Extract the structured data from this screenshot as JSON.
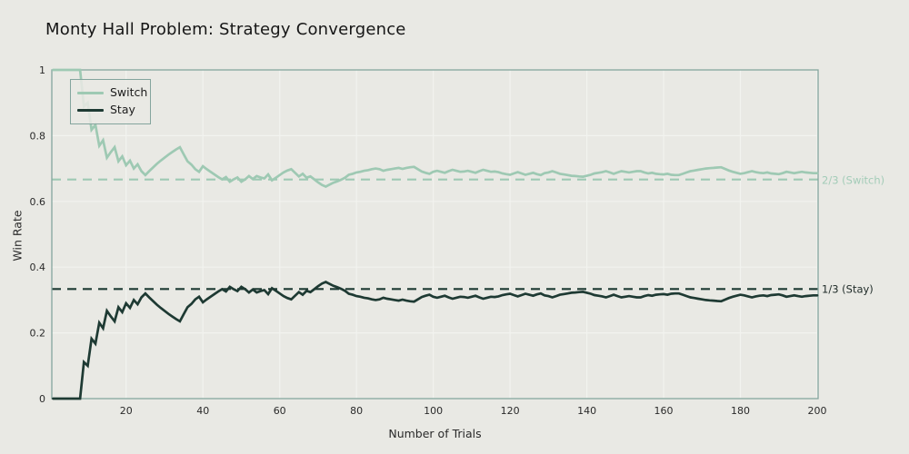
{
  "title": "Monty Hall Problem: Strategy Convergence",
  "axes": {
    "xlabel": "Number of Trials",
    "ylabel": "Win Rate",
    "x_tick_values": [
      20,
      40,
      60,
      80,
      100,
      120,
      140,
      160,
      180,
      200
    ],
    "x_tick_labels": [
      "20",
      "40",
      "60",
      "80",
      "100",
      "120",
      "140",
      "160",
      "180",
      "200"
    ],
    "y_tick_values": [
      0,
      0.2,
      0.4,
      0.6,
      0.8,
      1
    ],
    "y_tick_labels": [
      "0",
      "0.2",
      "0.4",
      "0.6",
      "0.8",
      "1"
    ]
  },
  "legend": {
    "items": [
      {
        "label": "Switch",
        "series": "switch"
      },
      {
        "label": "Stay",
        "series": "stay"
      }
    ]
  },
  "annotations": {
    "switch_label": "2/3 (Switch)",
    "stay_label": "1/3 (Stay)"
  },
  "colors": {
    "background": "#e9e9e4",
    "switch_line": "#9ec9b3",
    "stay_line": "#1e3a33",
    "spine": "#84a59d",
    "grid": "#f2f3ef",
    "text": "#2a2a2a",
    "title_text": "#161616",
    "annotation_switch": "#a3ccb8",
    "annotation_stay": "#1f2b28"
  },
  "chart_data": {
    "type": "line",
    "title": "Monty Hall Problem: Strategy Convergence",
    "xlabel": "Number of Trials",
    "ylabel": "Win Rate",
    "xlim": [
      1,
      200
    ],
    "ylim": [
      0,
      1
    ],
    "grid": true,
    "legend_position": "top-left",
    "x_start": 1,
    "x_step": 1,
    "reference_lines": [
      {
        "y": 0.6667,
        "label": "2/3 (Switch)",
        "style": "dashed",
        "color_key": "switch_line"
      },
      {
        "y": 0.3333,
        "label": "1/3 (Stay)",
        "style": "dashed",
        "color_key": "stay_line"
      }
    ],
    "series": [
      {
        "name": "Switch",
        "color_key": "switch_line",
        "values": [
          1,
          1,
          1,
          1,
          1,
          1,
          1,
          1,
          0.889,
          0.9,
          0.818,
          0.833,
          0.769,
          0.786,
          0.733,
          0.75,
          0.765,
          0.722,
          0.737,
          0.71,
          0.724,
          0.7,
          0.713,
          0.692,
          0.68,
          0.692,
          0.703,
          0.714,
          0.724,
          0.733,
          0.742,
          0.75,
          0.758,
          0.765,
          0.743,
          0.722,
          0.712,
          0.698,
          0.69,
          0.707,
          0.698,
          0.69,
          0.682,
          0.674,
          0.667,
          0.674,
          0.66,
          0.667,
          0.673,
          0.66,
          0.667,
          0.677,
          0.668,
          0.677,
          0.673,
          0.67,
          0.682,
          0.664,
          0.672,
          0.68,
          0.688,
          0.694,
          0.698,
          0.687,
          0.676,
          0.684,
          0.672,
          0.676,
          0.667,
          0.658,
          0.65,
          0.645,
          0.651,
          0.657,
          0.661,
          0.666,
          0.672,
          0.681,
          0.684,
          0.688,
          0.69,
          0.693,
          0.695,
          0.698,
          0.7,
          0.698,
          0.693,
          0.696,
          0.698,
          0.7,
          0.702,
          0.699,
          0.702,
          0.704,
          0.705,
          0.698,
          0.691,
          0.687,
          0.684,
          0.69,
          0.693,
          0.69,
          0.687,
          0.692,
          0.696,
          0.693,
          0.69,
          0.691,
          0.693,
          0.69,
          0.687,
          0.692,
          0.696,
          0.693,
          0.69,
          0.691,
          0.689,
          0.685,
          0.683,
          0.681,
          0.685,
          0.689,
          0.685,
          0.681,
          0.684,
          0.687,
          0.683,
          0.68,
          0.686,
          0.688,
          0.692,
          0.688,
          0.684,
          0.682,
          0.68,
          0.678,
          0.677,
          0.676,
          0.675,
          0.678,
          0.681,
          0.685,
          0.687,
          0.689,
          0.692,
          0.688,
          0.684,
          0.688,
          0.692,
          0.69,
          0.688,
          0.69,
          0.692,
          0.692,
          0.688,
          0.685,
          0.687,
          0.684,
          0.683,
          0.682,
          0.684,
          0.681,
          0.68,
          0.68,
          0.684,
          0.688,
          0.692,
          0.694,
          0.696,
          0.698,
          0.7,
          0.701,
          0.702,
          0.703,
          0.704,
          0.699,
          0.694,
          0.69,
          0.687,
          0.684,
          0.686,
          0.689,
          0.692,
          0.689,
          0.687,
          0.686,
          0.688,
          0.685,
          0.684,
          0.683,
          0.686,
          0.69,
          0.688,
          0.686,
          0.688,
          0.69,
          0.688,
          0.687,
          0.686,
          0.686
        ]
      },
      {
        "name": "Stay",
        "color_key": "stay_line",
        "values": [
          0,
          0,
          0,
          0,
          0,
          0,
          0,
          0,
          0.111,
          0.1,
          0.182,
          0.167,
          0.231,
          0.214,
          0.267,
          0.25,
          0.235,
          0.278,
          0.263,
          0.29,
          0.276,
          0.3,
          0.287,
          0.308,
          0.32,
          0.308,
          0.297,
          0.286,
          0.276,
          0.267,
          0.258,
          0.25,
          0.242,
          0.235,
          0.257,
          0.278,
          0.288,
          0.302,
          0.31,
          0.293,
          0.302,
          0.31,
          0.318,
          0.326,
          0.333,
          0.326,
          0.34,
          0.333,
          0.327,
          0.34,
          0.333,
          0.323,
          0.332,
          0.323,
          0.327,
          0.33,
          0.318,
          0.336,
          0.328,
          0.32,
          0.312,
          0.306,
          0.302,
          0.313,
          0.324,
          0.316,
          0.328,
          0.324,
          0.333,
          0.342,
          0.35,
          0.355,
          0.349,
          0.343,
          0.339,
          0.334,
          0.328,
          0.319,
          0.316,
          0.312,
          0.31,
          0.307,
          0.305,
          0.302,
          0.3,
          0.302,
          0.307,
          0.304,
          0.302,
          0.3,
          0.298,
          0.301,
          0.298,
          0.296,
          0.295,
          0.302,
          0.309,
          0.313,
          0.316,
          0.31,
          0.307,
          0.31,
          0.313,
          0.308,
          0.304,
          0.307,
          0.31,
          0.309,
          0.307,
          0.31,
          0.313,
          0.308,
          0.304,
          0.307,
          0.31,
          0.309,
          0.311,
          0.315,
          0.317,
          0.319,
          0.315,
          0.311,
          0.315,
          0.319,
          0.316,
          0.313,
          0.317,
          0.32,
          0.314,
          0.312,
          0.308,
          0.312,
          0.316,
          0.318,
          0.32,
          0.322,
          0.323,
          0.324,
          0.325,
          0.322,
          0.319,
          0.315,
          0.313,
          0.311,
          0.308,
          0.312,
          0.316,
          0.312,
          0.308,
          0.31,
          0.312,
          0.31,
          0.308,
          0.308,
          0.312,
          0.315,
          0.313,
          0.316,
          0.317,
          0.318,
          0.316,
          0.319,
          0.32,
          0.32,
          0.316,
          0.312,
          0.308,
          0.306,
          0.304,
          0.302,
          0.3,
          0.299,
          0.298,
          0.297,
          0.296,
          0.301,
          0.306,
          0.31,
          0.313,
          0.316,
          0.314,
          0.311,
          0.308,
          0.311,
          0.313,
          0.314,
          0.312,
          0.315,
          0.316,
          0.317,
          0.314,
          0.31,
          0.312,
          0.314,
          0.312,
          0.31,
          0.312,
          0.313,
          0.314,
          0.314
        ]
      }
    ]
  }
}
